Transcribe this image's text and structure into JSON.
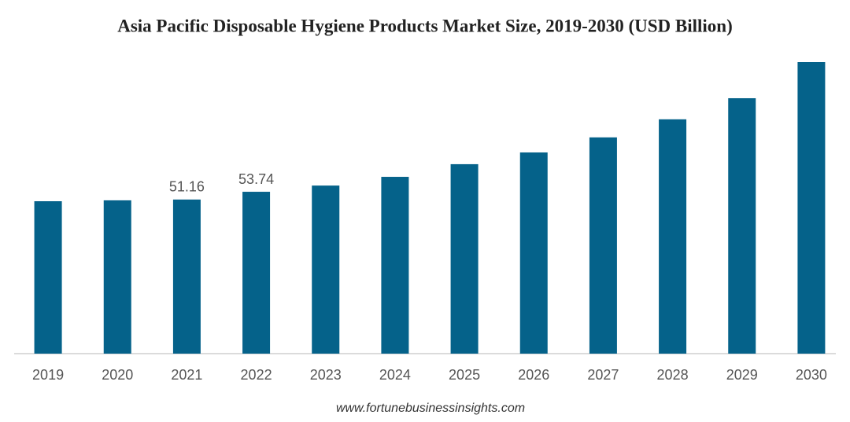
{
  "chart_data": {
    "type": "bar",
    "title": "Asia Pacific Disposable Hygiene Products Market Size, 2019-2030 (USD Billion)",
    "categories": [
      "2019",
      "2020",
      "2021",
      "2022",
      "2023",
      "2024",
      "2025",
      "2026",
      "2027",
      "2028",
      "2029",
      "2030"
    ],
    "values": [
      50.6,
      50.9,
      51.16,
      53.74,
      55.8,
      58.7,
      62.9,
      66.8,
      71.8,
      77.8,
      84.8,
      96.8
    ],
    "value_labels": [
      null,
      null,
      "51.16",
      "53.74",
      null,
      null,
      null,
      null,
      null,
      null,
      null,
      null
    ],
    "color": "#05628a",
    "source": "www.fortunebusinessinsights.com"
  }
}
